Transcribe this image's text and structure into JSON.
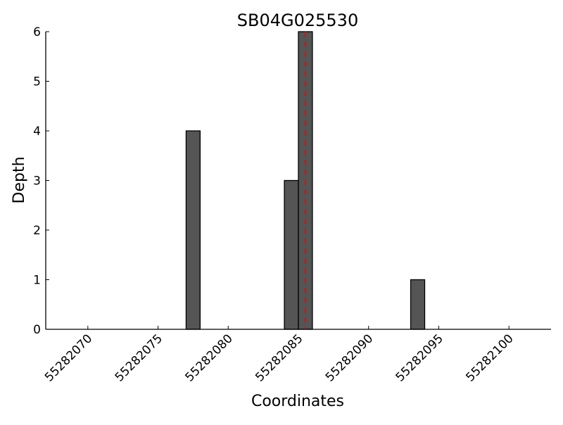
{
  "chart_data": {
    "type": "bar",
    "title": "SB04G025530",
    "xlabel": "Coordinates",
    "ylabel": "Depth",
    "xlim": [
      55282067,
      55282103
    ],
    "ylim": [
      0,
      6
    ],
    "xticks": [
      "55282070",
      "55282075",
      "55282080",
      "55282085",
      "55282090",
      "55282095",
      "55282100"
    ],
    "yticks": [
      "0",
      "1",
      "2",
      "3",
      "4",
      "5",
      "6"
    ],
    "bars": [
      {
        "x": 55282077,
        "value": 4
      },
      {
        "x": 55282084,
        "value": 3
      },
      {
        "x": 55282085,
        "value": 6
      },
      {
        "x": 55282093,
        "value": 1
      }
    ],
    "bar_width": 1,
    "bar_color": "#555555",
    "marker_line": {
      "x": 55282085.5,
      "color": "#ff0000",
      "style": "dashed"
    },
    "grid": false
  }
}
